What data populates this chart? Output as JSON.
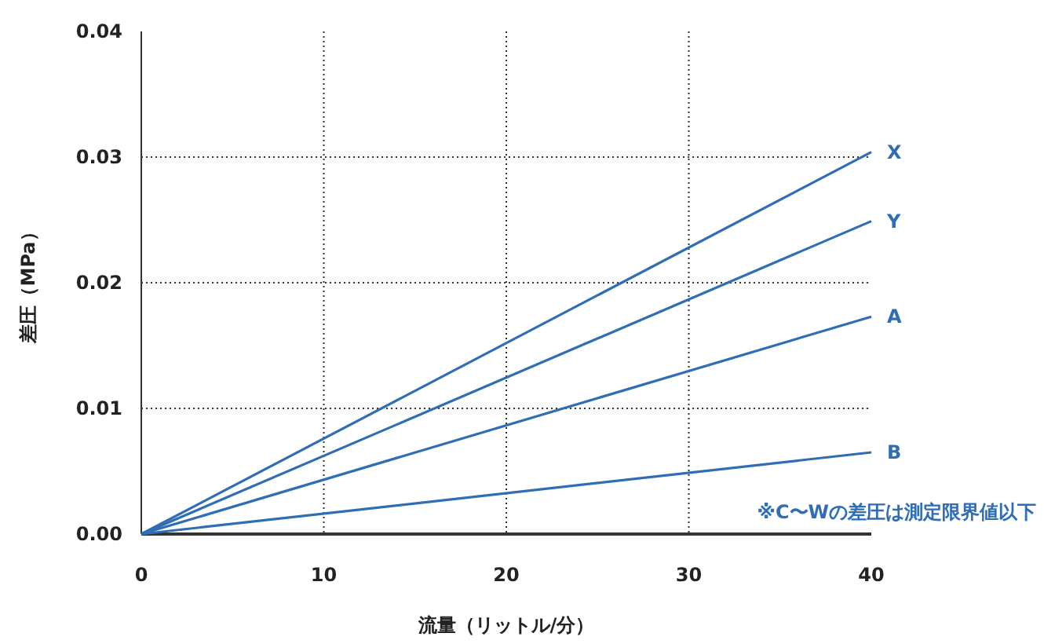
{
  "chart_data": {
    "type": "line",
    "xlabel": "流量（リットル/分）",
    "ylabel": "差圧（MPa）",
    "x": [
      0,
      40
    ],
    "series": [
      {
        "name": "X",
        "color": "#2f6eb5",
        "values": [
          0,
          0.0304
        ]
      },
      {
        "name": "Y",
        "color": "#2f6eb5",
        "values": [
          0,
          0.0249
        ]
      },
      {
        "name": "A",
        "color": "#2f6eb5",
        "values": [
          0,
          0.0173
        ]
      },
      {
        "name": "B",
        "color": "#2f6eb5",
        "values": [
          0,
          0.0065
        ]
      }
    ],
    "xlim": [
      0,
      40
    ],
    "xticks": [
      0,
      10,
      20,
      30,
      40
    ],
    "ylim": [
      0,
      0.04
    ],
    "yticks": [
      {
        "value": 0,
        "label": "0.00"
      },
      {
        "value": 0.01,
        "label": "0.01"
      },
      {
        "value": 0.02,
        "label": "0.02"
      },
      {
        "value": 0.03,
        "label": "0.03"
      },
      {
        "value": 0.04,
        "label": "0.04"
      }
    ],
    "grid": true,
    "marker": "none",
    "line_style": "solid",
    "annotations": [
      "※C〜Wの差圧は測定限界値以下"
    ]
  }
}
